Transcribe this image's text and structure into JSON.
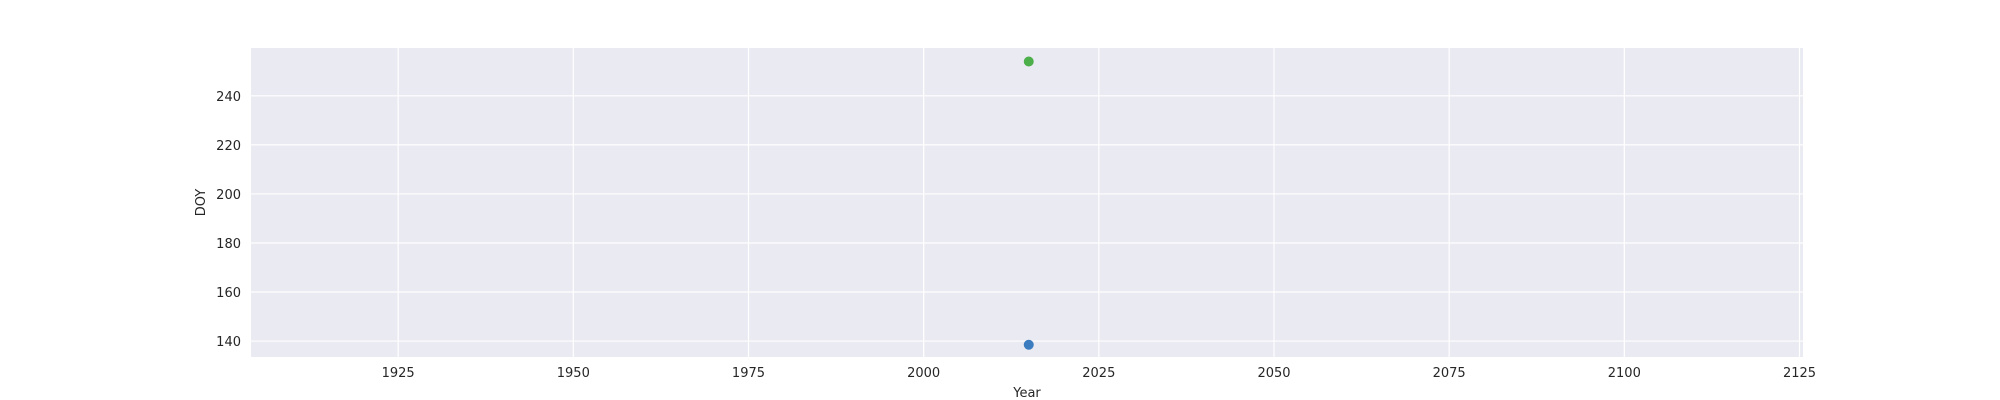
{
  "chart_data": {
    "type": "scatter",
    "title": "",
    "xlabel": "Year",
    "ylabel": "DOY",
    "xlim": [
      1904,
      2125.5
    ],
    "ylim": [
      133.5,
      259.5
    ],
    "xticks": [
      1925,
      1950,
      1975,
      2000,
      2025,
      2050,
      2075,
      2100,
      2125
    ],
    "yticks": [
      140,
      160,
      180,
      200,
      220,
      240
    ],
    "grid": true,
    "background": "#eaeaf2",
    "grid_color": "#ffffff",
    "series": [
      {
        "x": [
          2015
        ],
        "y": [
          138.5
        ],
        "color": "#3b7dbf"
      },
      {
        "x": [
          2015
        ],
        "y": [
          254
        ],
        "color": "#4daf4a"
      }
    ]
  }
}
